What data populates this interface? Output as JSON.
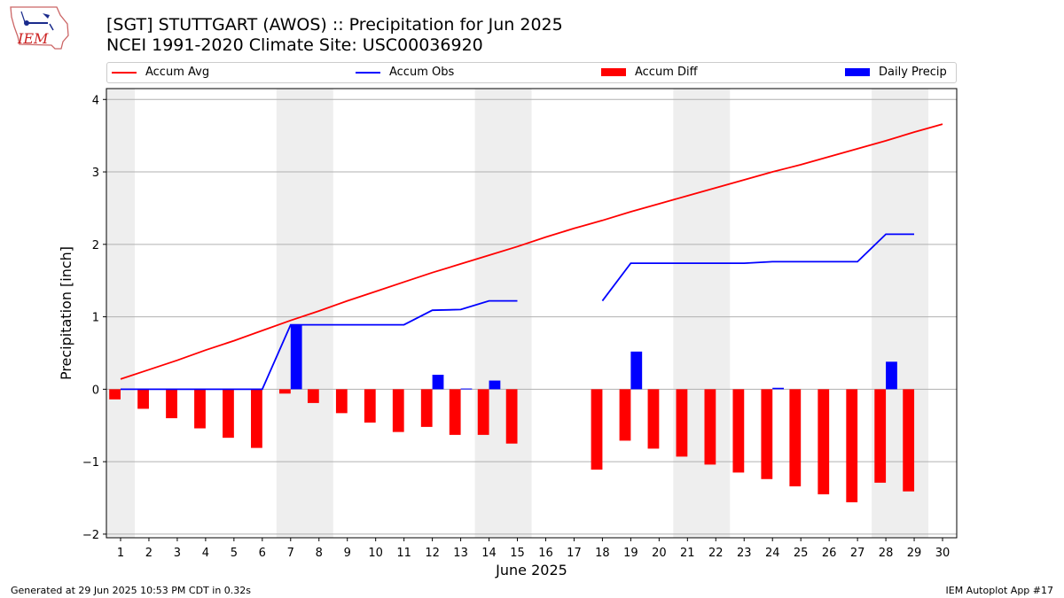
{
  "header": {
    "title_line1": "[SGT] STUTTGART (AWOS) :: Precipitation for Jun 2025",
    "title_line2": "NCEI 1991-2020 Climate Site: USC00036920",
    "logo_text": "IEM"
  },
  "legend": {
    "accum_avg": "Accum Avg",
    "accum_obs": "Accum Obs",
    "accum_diff": "Accum Diff",
    "daily_precip": "Daily Precip"
  },
  "footer": {
    "left": "Generated at 29 Jun 2025 10:53 PM CDT in 0.32s",
    "right": "IEM Autoplot App #17"
  },
  "colors": {
    "accum_avg": "#ff0000",
    "accum_obs": "#0000ff",
    "accum_diff": "#ff0000",
    "daily_precip": "#0000ff",
    "weekend_shade": "#eeeeee",
    "grid": "#b0b0b0"
  },
  "chart_data": {
    "type": "bar",
    "xlabel": "June 2025",
    "ylabel": "Precipitation [inch]",
    "ylim": [
      -2.05,
      4.15
    ],
    "yticks": [
      -2,
      -1,
      0,
      1,
      2,
      3,
      4
    ],
    "ytick_labels": [
      "−2",
      "−1",
      "0",
      "1",
      "2",
      "3",
      "4"
    ],
    "days": [
      1,
      2,
      3,
      4,
      5,
      6,
      7,
      8,
      9,
      10,
      11,
      12,
      13,
      14,
      15,
      16,
      17,
      18,
      19,
      20,
      21,
      22,
      23,
      24,
      25,
      26,
      27,
      28,
      29,
      30
    ],
    "shaded_days": [
      [
        1,
        1
      ],
      [
        7,
        8
      ],
      [
        14,
        15
      ],
      [
        21,
        22
      ],
      [
        28,
        29
      ]
    ],
    "grid": "horizontal",
    "series": [
      {
        "name": "Accum Avg",
        "type": "line",
        "values": [
          0.14,
          0.27,
          0.4,
          0.54,
          0.67,
          0.81,
          0.95,
          1.08,
          1.22,
          1.35,
          1.48,
          1.61,
          1.73,
          1.85,
          1.97,
          2.1,
          2.22,
          2.33,
          2.45,
          2.56,
          2.67,
          2.78,
          2.89,
          3.0,
          3.1,
          3.21,
          3.32,
          3.43,
          3.55,
          3.66
        ]
      },
      {
        "name": "Accum Obs",
        "type": "line",
        "values": [
          0.0,
          0.0,
          0.0,
          0.0,
          0.0,
          0.0,
          0.89,
          0.89,
          0.89,
          0.89,
          0.89,
          1.09,
          1.1,
          1.22,
          1.22,
          null,
          null,
          1.22,
          1.74,
          1.74,
          1.74,
          1.74,
          1.74,
          1.76,
          1.76,
          1.76,
          1.76,
          2.14,
          2.14,
          null
        ]
      },
      {
        "name": "Accum Diff",
        "type": "bar",
        "values": [
          -0.14,
          -0.27,
          -0.4,
          -0.54,
          -0.67,
          -0.81,
          -0.06,
          -0.19,
          -0.33,
          -0.46,
          -0.59,
          -0.52,
          -0.63,
          -0.63,
          -0.75,
          null,
          null,
          -1.11,
          -0.71,
          -0.82,
          -0.93,
          -1.04,
          -1.15,
          -1.24,
          -1.34,
          -1.45,
          -1.56,
          -1.29,
          -1.41,
          null
        ]
      },
      {
        "name": "Daily Precip",
        "type": "bar",
        "values": [
          0,
          0,
          0,
          0,
          0,
          0,
          0.89,
          0,
          0,
          0,
          0,
          0.2,
          0.01,
          0.12,
          0,
          null,
          null,
          0,
          0.52,
          0,
          0,
          0,
          0,
          0.02,
          0,
          0,
          0,
          0.38,
          0,
          null
        ]
      }
    ]
  }
}
